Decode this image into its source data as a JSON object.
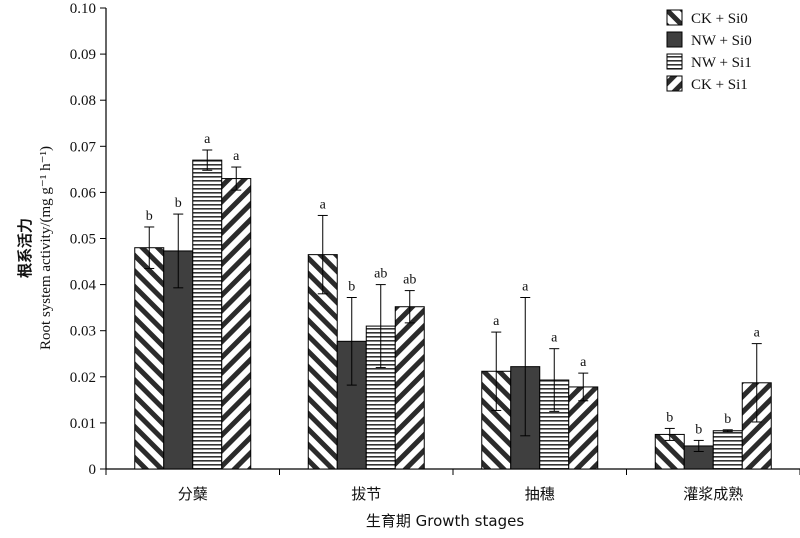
{
  "chart_data": {
    "type": "bar",
    "xlabel": "生育期 Growth stages",
    "ylabel_cn": "根系活力",
    "ylabel_en": "Root system activity/(mg g⁻¹ h⁻¹)",
    "ylim": [
      0,
      0.1
    ],
    "yticks": [
      "0",
      "0.01",
      "0.02",
      "0.03",
      "0.04",
      "0.05",
      "0.06",
      "0.07",
      "0.08",
      "0.09",
      "0.10"
    ],
    "categories": [
      "分蘖",
      "拔节",
      "抽穗",
      "灌浆成熟"
    ],
    "legend_position": "top-right",
    "grid": false,
    "series": [
      {
        "name": "CK + Si0",
        "pattern": "hatch-back",
        "values": [
          0.048,
          0.0465,
          0.0212,
          0.0075
        ],
        "errors": [
          0.0045,
          0.0085,
          0.0085,
          0.0013
        ],
        "labels": [
          "b",
          "a",
          "a",
          "b"
        ]
      },
      {
        "name": "NW + Si0",
        "pattern": "solid-dark",
        "values": [
          0.0473,
          0.0277,
          0.0222,
          0.005
        ],
        "errors": [
          0.008,
          0.0095,
          0.015,
          0.0012
        ],
        "labels": [
          "b",
          "b",
          "a",
          "b"
        ]
      },
      {
        "name": "NW + Si1",
        "pattern": "horizontal",
        "values": [
          0.067,
          0.031,
          0.0193,
          0.0083
        ],
        "errors": [
          0.0022,
          0.009,
          0.0068,
          0.0002
        ],
        "labels": [
          "a",
          "ab",
          "a",
          "b"
        ]
      },
      {
        "name": "CK + Si1",
        "pattern": "hatch-fwd",
        "values": [
          0.063,
          0.0352,
          0.0178,
          0.0187
        ],
        "errors": [
          0.0025,
          0.0035,
          0.003,
          0.0085
        ],
        "labels": [
          "a",
          "ab",
          "a",
          "a"
        ]
      }
    ],
    "colors": {
      "dark_fill": "#3f3f3f",
      "stroke": "#000000",
      "background": "#ffffff"
    }
  }
}
